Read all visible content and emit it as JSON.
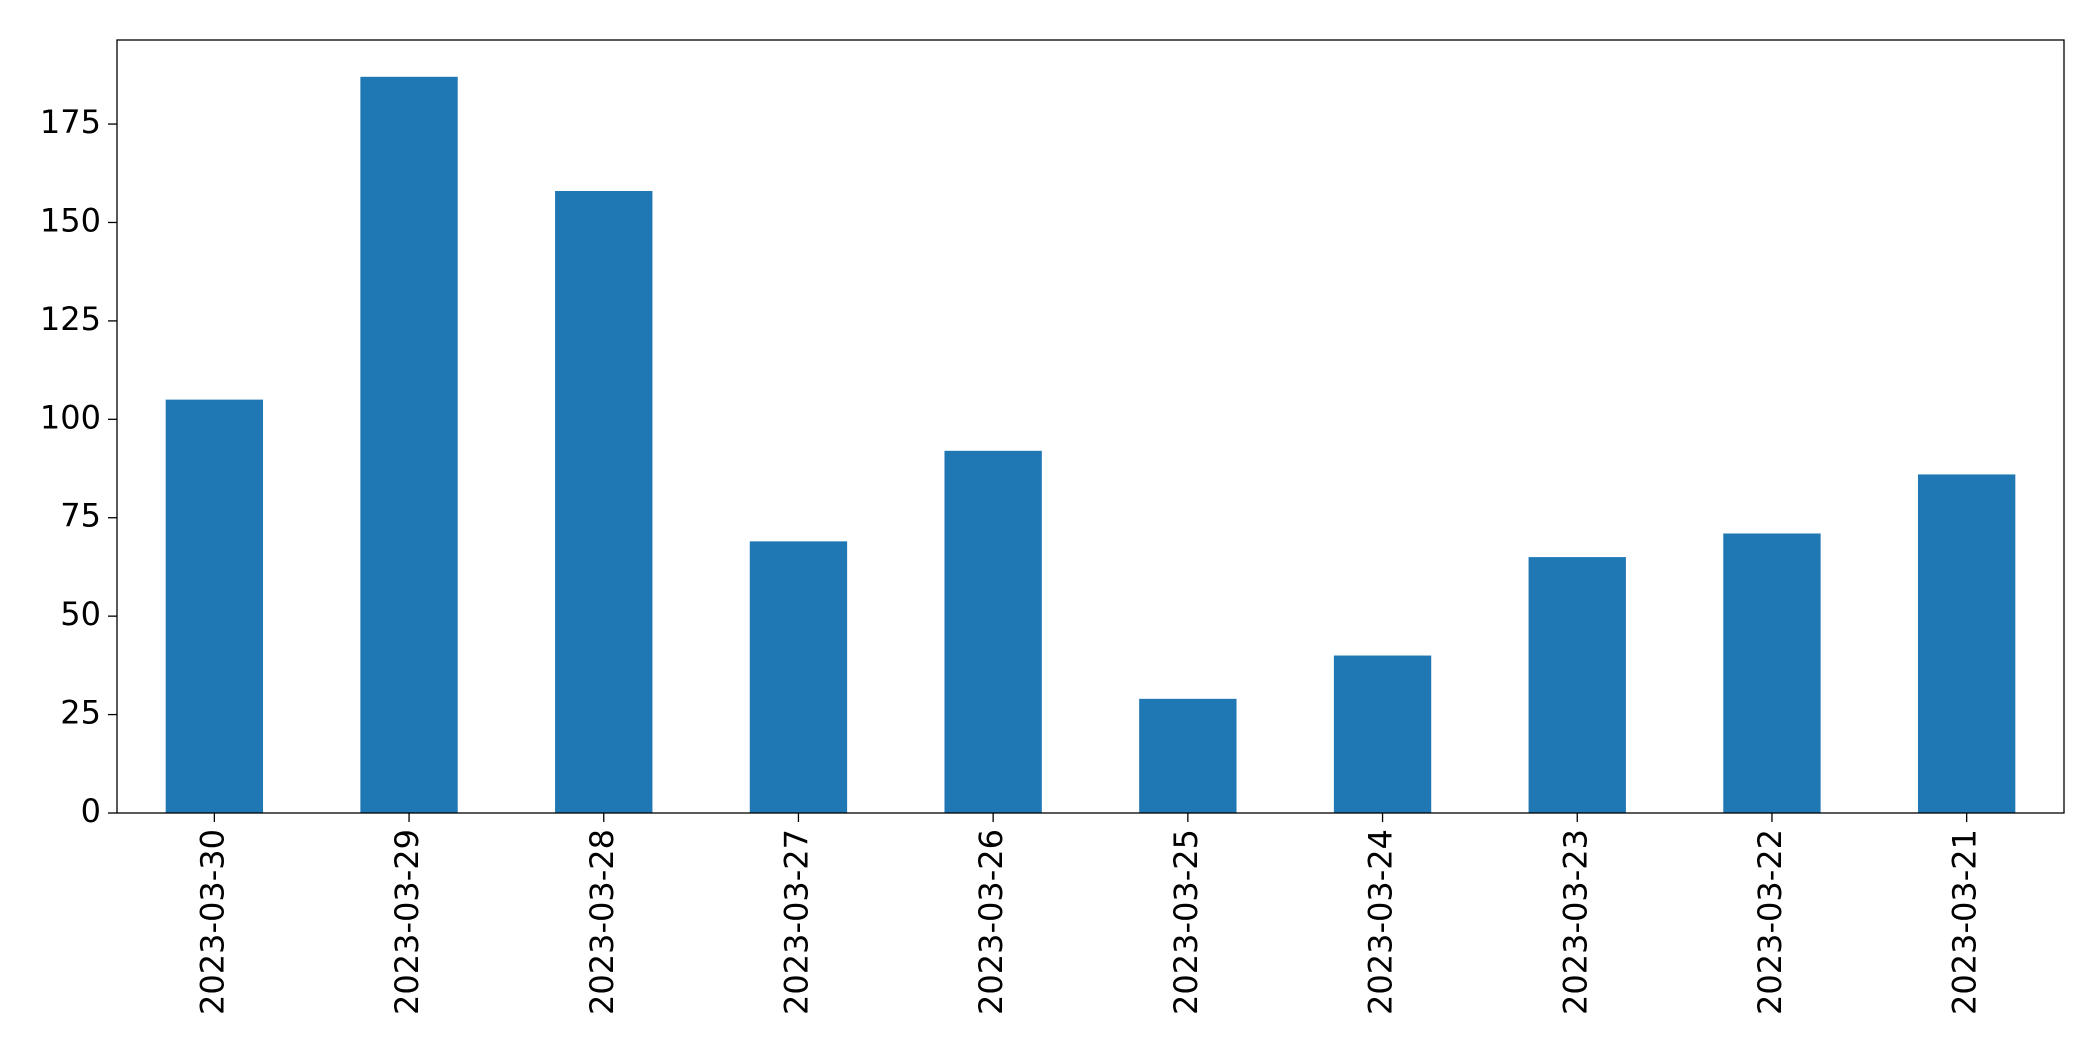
{
  "chart_data": {
    "type": "bar",
    "categories": [
      "2023-03-30",
      "2023-03-29",
      "2023-03-28",
      "2023-03-27",
      "2023-03-26",
      "2023-03-25",
      "2023-03-24",
      "2023-03-23",
      "2023-03-22",
      "2023-03-21"
    ],
    "values": [
      105,
      187,
      158,
      69,
      92,
      29,
      40,
      65,
      71,
      86
    ],
    "color": "#1f77b4",
    "ylim": [
      0,
      196.35
    ],
    "yticks": [
      0,
      25,
      50,
      75,
      100,
      125,
      150,
      175
    ],
    "grid": false
  }
}
